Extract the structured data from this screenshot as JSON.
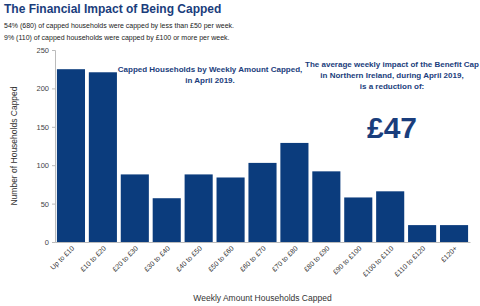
{
  "chart_data": {
    "type": "bar",
    "title": "The Financial Impact of Being Capped",
    "subtitle": [
      "54% (680) of capped households were capped by less than £50 per week.",
      "9% (110) of capped households were capped by £100 or more per week."
    ],
    "annotations": [
      [
        "Capped Households by Weekly Amount Capped,",
        "in April 2019."
      ],
      [
        "The average weekly impact of the Benefit Cap",
        "in Northern Ireland, during April 2019,",
        "is a reduction of:"
      ],
      [
        "£47"
      ]
    ],
    "x_label": "Weekly Amount Households Capped",
    "y_label": "Number of Households Capped",
    "categories": [
      "Up to £10",
      "£10 to £20",
      "£20 to £30",
      "£30 to £40",
      "£40 to £50",
      "£50 to £60",
      "£60 to £70",
      "£70 to £80",
      "£80 to £90",
      "£90 to £100",
      "£100 to £110",
      "£110 to £120",
      "£120+"
    ],
    "values": [
      225,
      221,
      88,
      57,
      88,
      84,
      103,
      129,
      92,
      58,
      66,
      22,
      22
    ],
    "color": "#0b3c7d",
    "ylim": [
      0,
      250
    ],
    "yticks": [
      0,
      50,
      100,
      150,
      200,
      250
    ],
    "grid": false
  }
}
